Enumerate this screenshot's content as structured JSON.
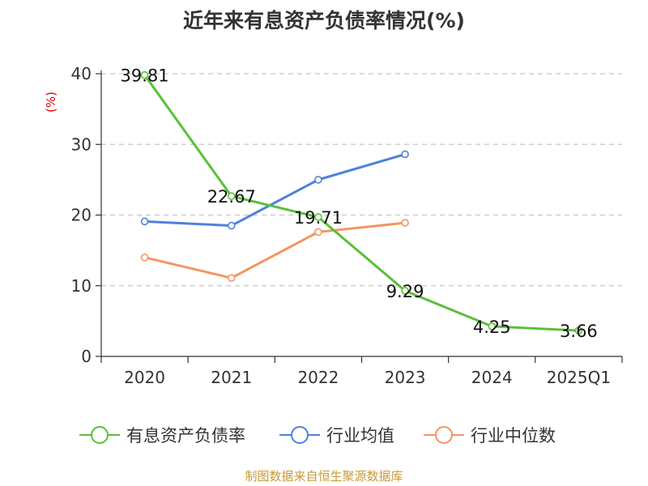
{
  "chart_data": {
    "type": "line",
    "title": "近年来有息资产负债率情况(%)",
    "ylabel": "(%)",
    "xlabel": "",
    "categories": [
      "2020",
      "2021",
      "2022",
      "2023",
      "2024",
      "2025Q1"
    ],
    "ylim": [
      0,
      40
    ],
    "yticks": [
      0,
      10,
      20,
      30,
      40
    ],
    "grid": true,
    "legend_position": "bottom",
    "series": [
      {
        "name": "有息资产负债率",
        "color": "#5ac03a",
        "values": [
          39.81,
          22.67,
          19.71,
          9.29,
          4.25,
          3.66
        ],
        "labels": [
          "39.81",
          "22.67",
          "19.71",
          "9.29",
          "4.25",
          "3.66"
        ]
      },
      {
        "name": "行业均值",
        "color": "#4f81dc",
        "values": [
          19.1,
          18.5,
          25.0,
          28.6,
          null,
          null
        ]
      },
      {
        "name": "行业中位数",
        "color": "#f59461",
        "values": [
          14.0,
          11.1,
          17.6,
          18.9,
          null,
          null
        ]
      }
    ],
    "source": "制图数据来自恒生聚源数据库"
  }
}
